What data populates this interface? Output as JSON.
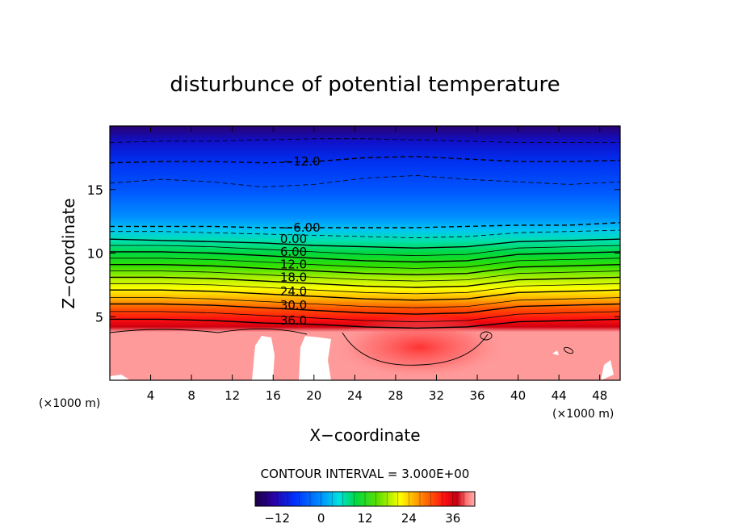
{
  "chart_data": {
    "type": "heatmap",
    "title": "disturbunce of potential temperature",
    "xlabel": "X−coordinate",
    "ylabel": "Z−coordinate",
    "x_unit_left": "(×1000 m)",
    "x_unit_right": "(×1000 m)",
    "xlim": [
      0,
      50
    ],
    "ylim": [
      0,
      20
    ],
    "x_ticks": [
      {
        "v": 4,
        "label": "4"
      },
      {
        "v": 8,
        "label": "8"
      },
      {
        "v": 12,
        "label": "12"
      },
      {
        "v": 16,
        "label": "16"
      },
      {
        "v": 20,
        "label": "20"
      },
      {
        "v": 24,
        "label": "24"
      },
      {
        "v": 28,
        "label": "28"
      },
      {
        "v": 32,
        "label": "32"
      },
      {
        "v": 36,
        "label": "36"
      },
      {
        "v": 40,
        "label": "40"
      },
      {
        "v": 44,
        "label": "44"
      },
      {
        "v": 48,
        "label": "48"
      }
    ],
    "y_ticks": [
      {
        "v": 5,
        "label": "5"
      },
      {
        "v": 10,
        "label": "10"
      },
      {
        "v": 15,
        "label": "15"
      }
    ],
    "contour_interval_text": "CONTOUR INTERVAL = 3.000E+00",
    "contour_labels": [
      {
        "text": "−12.0",
        "x": 18.8,
        "z": 17.2
      },
      {
        "text": "−6.00",
        "x": 18.8,
        "z": 12.0
      },
      {
        "text": "0.00",
        "x": 18.0,
        "z": 11.1
      },
      {
        "text": "6.00",
        "x": 18.0,
        "z": 10.1
      },
      {
        "text": "12.0",
        "x": 18.0,
        "z": 9.1
      },
      {
        "text": "18.0",
        "x": 18.0,
        "z": 8.1
      },
      {
        "text": "24.0",
        "x": 18.0,
        "z": 7.0
      },
      {
        "text": "30.0",
        "x": 18.0,
        "z": 5.9
      },
      {
        "text": "36.0",
        "x": 18.0,
        "z": 4.7
      }
    ],
    "contour_lines": [
      {
        "level": -15,
        "z": [
          18.7,
          18.8,
          18.8,
          18.9,
          19.0,
          19.0,
          18.9,
          18.8,
          18.7,
          18.7,
          18.7
        ]
      },
      {
        "level": -12,
        "z": [
          17.1,
          17.2,
          17.2,
          17.1,
          17.2,
          17.5,
          17.6,
          17.4,
          17.2,
          17.2,
          17.3
        ]
      },
      {
        "level": -9,
        "z": [
          15.5,
          15.8,
          15.6,
          15.2,
          15.4,
          15.9,
          16.1,
          15.8,
          15.6,
          15.4,
          15.6
        ]
      },
      {
        "level": -6,
        "z": [
          12.1,
          12.1,
          12.1,
          12.0,
          12.0,
          12.0,
          12.0,
          12.1,
          12.2,
          12.2,
          12.4
        ]
      },
      {
        "level": -3,
        "z": [
          11.7,
          11.7,
          11.6,
          11.5,
          11.4,
          11.3,
          11.2,
          11.3,
          11.6,
          11.7,
          11.8
        ]
      },
      {
        "level": 0,
        "z": [
          11.1,
          11.0,
          10.9,
          10.8,
          10.6,
          10.5,
          10.4,
          10.5,
          10.9,
          11.0,
          11.1
        ]
      },
      {
        "level": 3,
        "z": [
          10.6,
          10.6,
          10.5,
          10.3,
          10.1,
          9.9,
          9.8,
          9.9,
          10.4,
          10.5,
          10.6
        ]
      },
      {
        "level": 6,
        "z": [
          10.1,
          10.1,
          10.0,
          9.8,
          9.6,
          9.4,
          9.3,
          9.4,
          9.9,
          10.0,
          10.1
        ]
      },
      {
        "level": 9,
        "z": [
          9.6,
          9.6,
          9.5,
          9.3,
          9.1,
          8.9,
          8.8,
          8.9,
          9.4,
          9.5,
          9.6
        ]
      },
      {
        "level": 12,
        "z": [
          9.1,
          9.1,
          9.0,
          8.8,
          8.6,
          8.4,
          8.3,
          8.4,
          8.9,
          9.0,
          9.1
        ]
      },
      {
        "level": 15,
        "z": [
          8.6,
          8.6,
          8.5,
          8.3,
          8.1,
          7.9,
          7.8,
          7.9,
          8.4,
          8.5,
          8.6
        ]
      },
      {
        "level": 18,
        "z": [
          8.1,
          8.1,
          8.0,
          7.8,
          7.6,
          7.4,
          7.3,
          7.4,
          7.9,
          8.0,
          8.1
        ]
      },
      {
        "level": 21,
        "z": [
          7.6,
          7.6,
          7.5,
          7.3,
          7.1,
          6.9,
          6.8,
          6.9,
          7.4,
          7.5,
          7.6
        ]
      },
      {
        "level": 24,
        "z": [
          7.1,
          7.1,
          7.0,
          6.8,
          6.6,
          6.4,
          6.3,
          6.4,
          6.9,
          7.0,
          7.1
        ]
      },
      {
        "level": 27,
        "z": [
          6.5,
          6.5,
          6.4,
          6.2,
          6.0,
          5.8,
          5.7,
          5.8,
          6.3,
          6.4,
          6.5
        ]
      },
      {
        "level": 30,
        "z": [
          6.0,
          6.0,
          5.9,
          5.7,
          5.5,
          5.3,
          5.2,
          5.3,
          5.8,
          5.9,
          6.0
        ]
      },
      {
        "level": 33,
        "z": [
          5.4,
          5.4,
          5.3,
          5.1,
          4.9,
          4.7,
          4.6,
          4.7,
          5.2,
          5.3,
          5.4
        ]
      },
      {
        "level": 36,
        "z": [
          4.8,
          4.8,
          4.7,
          4.5,
          4.4,
          4.2,
          4.1,
          4.2,
          4.6,
          4.7,
          4.8
        ]
      }
    ],
    "colorbar": {
      "min": -18,
      "max": 42,
      "ticks": [
        {
          "v": -12,
          "label": "−12"
        },
        {
          "v": 0,
          "label": "0"
        },
        {
          "v": 12,
          "label": "12"
        },
        {
          "v": 24,
          "label": "24"
        },
        {
          "v": 36,
          "label": "36"
        }
      ]
    },
    "colors": {
      "low": "#2a0060",
      "blue": "#0040ff",
      "cyan": "#00e0e0",
      "green": "#00d000",
      "yellow": "#ffff00",
      "red": "#ff1010",
      "high": "#ff9a9a"
    }
  }
}
